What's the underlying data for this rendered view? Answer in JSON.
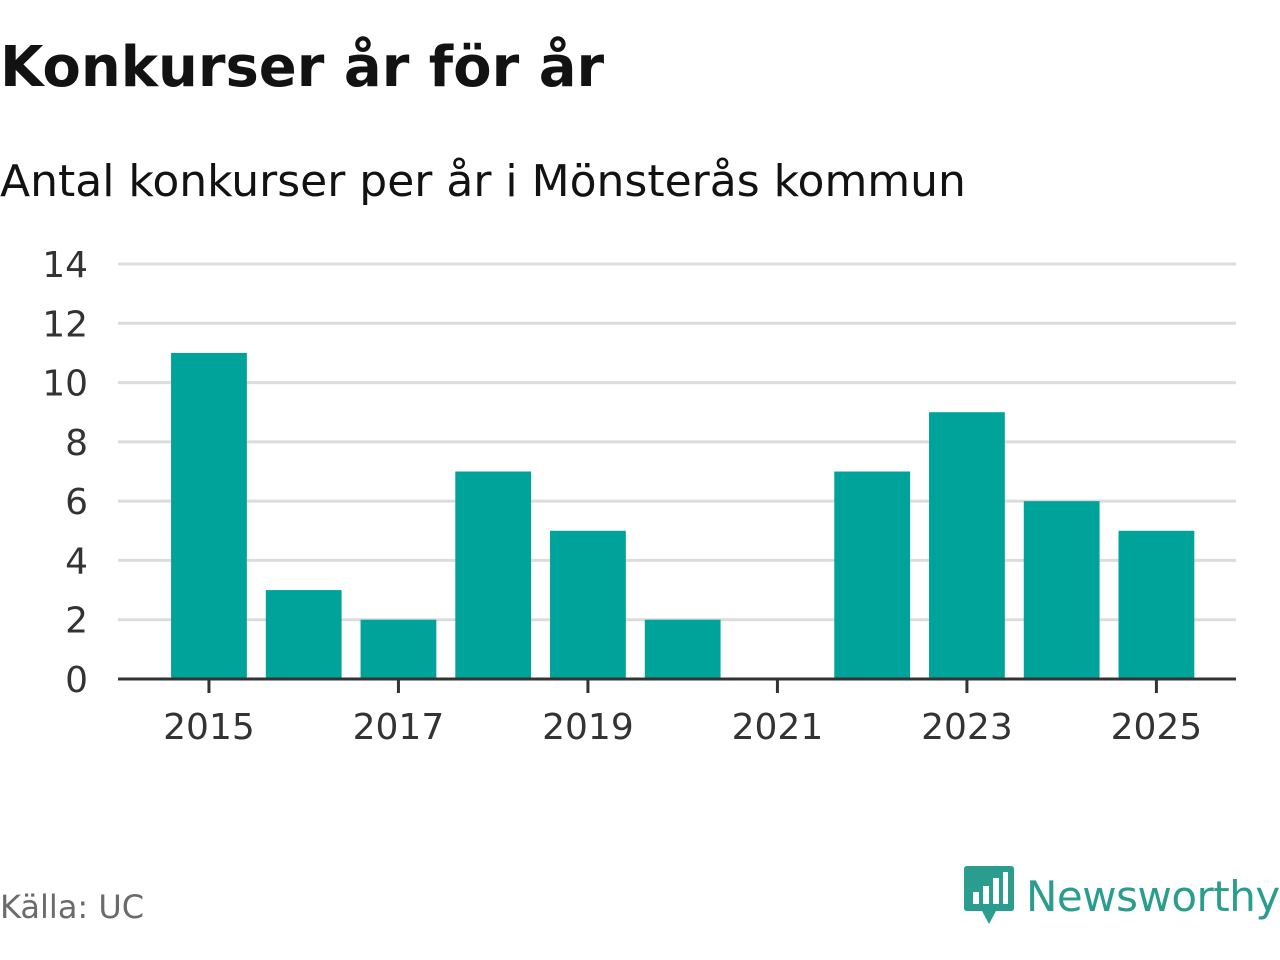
{
  "header": {
    "title": "Konkurser år för år",
    "subtitle": "Antal konkurser per år i Mönsterås kommun"
  },
  "footer": {
    "source": "Källa: UC",
    "brand": "Newsworthy"
  },
  "colors": {
    "bar": "#00a39a",
    "grid": "#dcdcdc",
    "axis": "#333333",
    "brand": "#2a9d8f"
  },
  "chart_data": {
    "type": "bar",
    "title": "Konkurser år för år",
    "subtitle": "Antal konkurser per år i Mönsterås kommun",
    "xlabel": "",
    "ylabel": "",
    "categories": [
      "2015",
      "2016",
      "2017",
      "2018",
      "2019",
      "2020",
      "2021",
      "2022",
      "2023",
      "2024",
      "2025"
    ],
    "values": [
      11,
      3,
      2,
      7,
      5,
      2,
      0,
      7,
      9,
      6,
      5
    ],
    "x_tick_labels": [
      "2015",
      "2017",
      "2019",
      "2021",
      "2023",
      "2025"
    ],
    "y_ticks": [
      0,
      2,
      4,
      6,
      8,
      10,
      12,
      14
    ],
    "ylim": [
      0,
      14
    ],
    "grid": true,
    "legend": "none"
  }
}
